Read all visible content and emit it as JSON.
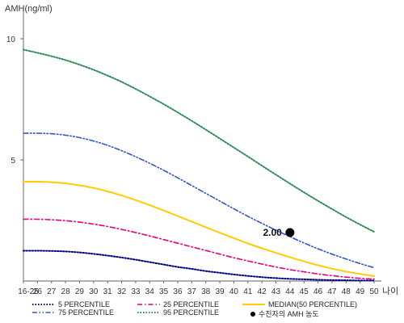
{
  "chart_data": {
    "type": "line",
    "ylabel": "AMH(ng/ml)",
    "xlabel": "나이",
    "ylim": [
      0,
      11
    ],
    "y_ticks": [
      5,
      10
    ],
    "x_categories": [
      "16-25",
      "26",
      "27",
      "28",
      "29",
      "30",
      "31",
      "32",
      "33",
      "34",
      "35",
      "36",
      "37",
      "38",
      "39",
      "40",
      "41",
      "42",
      "43",
      "44",
      "45",
      "46",
      "47",
      "48",
      "49",
      "50"
    ],
    "series": [
      {
        "name": "5 PERCENTILE",
        "color": "#000080",
        "dash": "dotted",
        "values": [
          1.25,
          1.25,
          1.24,
          1.22,
          1.18,
          1.12,
          1.05,
          0.97,
          0.88,
          0.78,
          0.68,
          0.58,
          0.5,
          0.41,
          0.34,
          0.27,
          0.21,
          0.16,
          0.12,
          0.09,
          0.07,
          0.05,
          0.04,
          0.03,
          0.02,
          0.02
        ]
      },
      {
        "name": "25 PERCENTILE",
        "color": "#e6007e",
        "dash": "dashdot",
        "values": [
          2.55,
          2.55,
          2.53,
          2.49,
          2.43,
          2.35,
          2.25,
          2.13,
          2.0,
          1.86,
          1.71,
          1.56,
          1.41,
          1.26,
          1.11,
          0.96,
          0.83,
          0.7,
          0.58,
          0.47,
          0.38,
          0.29,
          0.22,
          0.16,
          0.11,
          0.08
        ]
      },
      {
        "name": "MEDIAN(50 PERCENTILE)",
        "color": "#ffcc00",
        "dash": "solid",
        "values": [
          4.1,
          4.1,
          4.08,
          4.03,
          3.95,
          3.84,
          3.7,
          3.53,
          3.34,
          3.13,
          2.91,
          2.68,
          2.45,
          2.22,
          1.99,
          1.77,
          1.55,
          1.35,
          1.16,
          0.98,
          0.81,
          0.65,
          0.51,
          0.39,
          0.29,
          0.2
        ]
      },
      {
        "name": "75 PERCENTILE",
        "color": "#3355cc",
        "dash": "dashdotdot",
        "values": [
          6.1,
          6.1,
          6.08,
          6.02,
          5.92,
          5.78,
          5.6,
          5.38,
          5.13,
          4.86,
          4.57,
          4.26,
          3.94,
          3.62,
          3.3,
          2.98,
          2.67,
          2.38,
          2.1,
          1.83,
          1.57,
          1.33,
          1.11,
          0.91,
          0.72,
          0.55
        ]
      },
      {
        "name": "95 PERCENTILE",
        "color": "#2e8b57",
        "dash": "dotted",
        "values": [
          9.55,
          9.42,
          9.28,
          9.12,
          8.93,
          8.72,
          8.48,
          8.22,
          7.93,
          7.62,
          7.3,
          6.96,
          6.61,
          6.25,
          5.88,
          5.51,
          5.14,
          4.76,
          4.39,
          4.02,
          3.66,
          3.31,
          2.97,
          2.64,
          2.33,
          2.03
        ]
      }
    ],
    "patient_marker": {
      "label": "수진자의 AMH 농도",
      "x": "44",
      "y": 2.0,
      "value_label": "2.00",
      "color": "#000000"
    },
    "legend_position": "bottom"
  }
}
